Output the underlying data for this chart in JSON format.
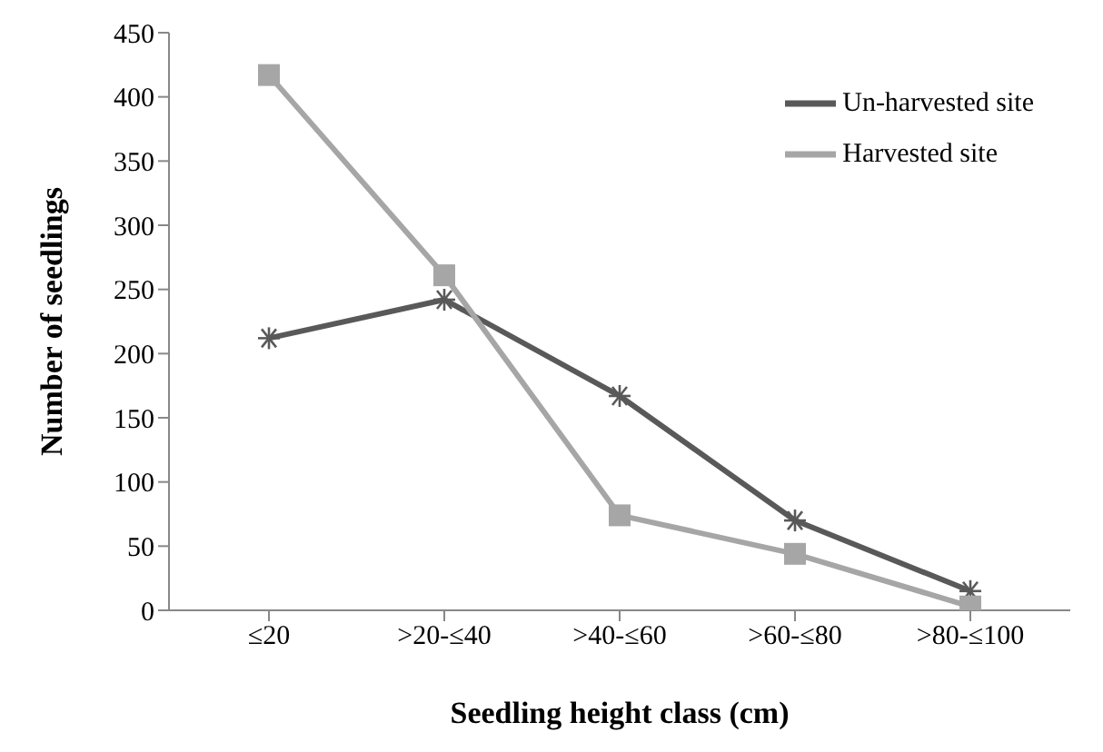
{
  "chart_data": {
    "type": "line",
    "xlabel": "Seedling height class (cm)",
    "ylabel": "Number of seedlings",
    "categories": [
      "≤20",
      ">20-≤40",
      ">40-≤60",
      ">60-≤80",
      ">80-≤100"
    ],
    "series": [
      {
        "name": "Un-harvested site",
        "color": "#595959",
        "values": [
          212,
          242,
          167,
          70,
          15
        ],
        "marker": "cross"
      },
      {
        "name": "Harvested site",
        "color": "#a6a6a6",
        "values": [
          417,
          261,
          74,
          44,
          3
        ],
        "marker": "square"
      }
    ],
    "ylim": [
      0,
      450
    ],
    "yticks": [
      0,
      50,
      100,
      150,
      200,
      250,
      300,
      350,
      400,
      450
    ],
    "grid": false,
    "legend": "top right"
  }
}
